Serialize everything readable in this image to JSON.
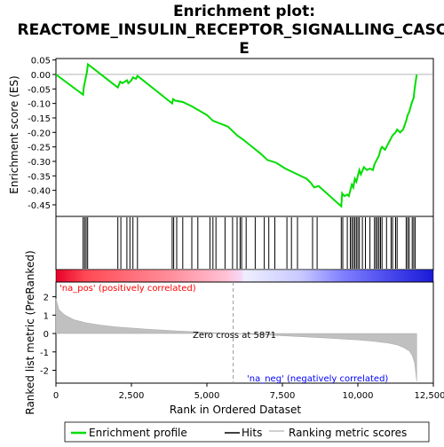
{
  "chart_data": {
    "type": "line",
    "title": "Enrichment plot:\nREACTOME_INSULIN_RECEPTOR_SIGNALLING_CASCAD\nE",
    "title_lines": [
      "Enrichment plot:",
      "REACTOME_INSULIN_RECEPTOR_SIGNALLING_CASCAD",
      "E"
    ],
    "top_panel": {
      "ylabel": "Enrichment score (ES)",
      "ylim": [
        -0.49,
        0.055
      ],
      "yticks": [
        0.05,
        0.0,
        -0.05,
        -0.1,
        -0.15,
        -0.2,
        -0.25,
        -0.3,
        -0.35,
        -0.4,
        -0.45
      ],
      "ytick_labels": [
        "0.05",
        "0.00",
        "-0.05",
        "-0.10",
        "-0.15",
        "-0.20",
        "-0.25",
        "-0.30",
        "-0.35",
        "-0.40",
        "-0.45"
      ],
      "series": [
        {
          "name": "Enrichment profile",
          "color": "#00dd00",
          "x": [
            0,
            900,
            920,
            980,
            1000,
            1030,
            1060,
            2050,
            2130,
            2200,
            2350,
            2400,
            2500,
            2550,
            2650,
            2700,
            3850,
            3880,
            3950,
            4200,
            4500,
            5000,
            5200,
            5700,
            6000,
            6200,
            6500,
            6800,
            7000,
            7300,
            7600,
            8000,
            8300,
            8450,
            8550,
            8700,
            9450,
            9480,
            9550,
            9650,
            9700,
            9750,
            9800,
            9850,
            9900,
            9950,
            10000,
            10050,
            10100,
            10200,
            10300,
            10400,
            10500,
            10550,
            10600,
            10650,
            10700,
            10750,
            10800,
            10900,
            11000,
            11100,
            11150,
            11250,
            11300,
            11400,
            11500,
            11600,
            11650,
            11700,
            11780,
            11850,
            11880,
            11920,
            11950
          ],
          "y": [
            0.0,
            -0.07,
            -0.045,
            -0.015,
            -0.005,
            0.01,
            0.035,
            -0.045,
            -0.025,
            -0.03,
            -0.02,
            -0.03,
            -0.02,
            -0.01,
            -0.015,
            -0.005,
            -0.1,
            -0.085,
            -0.09,
            -0.095,
            -0.11,
            -0.14,
            -0.16,
            -0.18,
            -0.21,
            -0.225,
            -0.25,
            -0.275,
            -0.295,
            -0.305,
            -0.325,
            -0.345,
            -0.36,
            -0.375,
            -0.39,
            -0.385,
            -0.455,
            -0.41,
            -0.42,
            -0.415,
            -0.42,
            -0.4,
            -0.38,
            -0.39,
            -0.36,
            -0.37,
            -0.35,
            -0.33,
            -0.345,
            -0.32,
            -0.33,
            -0.325,
            -0.33,
            -0.31,
            -0.3,
            -0.29,
            -0.28,
            -0.26,
            -0.25,
            -0.26,
            -0.24,
            -0.22,
            -0.21,
            -0.2,
            -0.19,
            -0.2,
            -0.19,
            -0.16,
            -0.14,
            -0.13,
            -0.1,
            -0.08,
            -0.05,
            -0.02,
            0.0
          ]
        }
      ]
    },
    "hits": [
      900,
      950,
      1000,
      1050,
      2050,
      2150,
      2350,
      2450,
      2550,
      2700,
      3850,
      3900,
      4000,
      4200,
      4500,
      4700,
      5100,
      5200,
      5300,
      5600,
      5850,
      6000,
      6100,
      6150,
      6300,
      6600,
      6900,
      7050,
      7250,
      7650,
      7800,
      8000,
      8500,
      8650,
      9450,
      9500,
      9650,
      9750,
      9800,
      9850,
      9900,
      9950,
      10000,
      10050,
      10150,
      10250,
      10400,
      10550,
      10600,
      10650,
      10700,
      10750,
      10800,
      10950,
      11100,
      11150,
      11250,
      11300,
      11600,
      11650,
      11700,
      11800,
      11850,
      11900
    ],
    "heatmap": {
      "pos_label": "'na_pos' (positively correlated)",
      "neg_label": "'na_neg' (negatively correlated)"
    },
    "bottom_panel": {
      "ylabel": "Ranked list metric (PreRanked)",
      "ylim": [
        -2.7,
        2.8
      ],
      "yticks": [
        2,
        1,
        0,
        -1,
        -2
      ],
      "ytick_labels": [
        "2",
        "1",
        "0",
        "-1",
        "-2"
      ],
      "zero_cross_label": "Zero cross at 5871",
      "zero_cross_x": 5871,
      "metric_x": [
        0,
        100,
        300,
        600,
        1000,
        1500,
        2000,
        3000,
        4000,
        5000,
        5871,
        7000,
        8000,
        9000,
        10000,
        10500,
        11000,
        11300,
        11500,
        11700,
        11800,
        11880,
        11950
      ],
      "metric_y": [
        1.9,
        1.3,
        1.0,
        0.75,
        0.58,
        0.45,
        0.36,
        0.24,
        0.14,
        0.06,
        0.0,
        -0.08,
        -0.16,
        -0.25,
        -0.35,
        -0.42,
        -0.52,
        -0.62,
        -0.75,
        -0.95,
        -1.2,
        -1.6,
        -2.6
      ]
    },
    "xlabel": "Rank in Ordered Dataset",
    "xlim": [
      0,
      12500
    ],
    "xticks": [
      0,
      2500,
      5000,
      7500,
      10000,
      12500
    ],
    "xtick_labels": [
      "0",
      "2,500",
      "5,000",
      "7,500",
      "10,000",
      "12,500"
    ],
    "legend": {
      "position": "bottom",
      "entries": [
        {
          "label": "Enrichment profile",
          "color": "#00dd00"
        },
        {
          "label": "Hits",
          "color": "#000000"
        },
        {
          "label": "Ranking metric scores",
          "color": "#c0c0c0"
        }
      ]
    },
    "colors": {
      "profile": "#00dd00",
      "metric_fill": "#c0c0c0",
      "pos_text": "#ff0000",
      "neg_text": "#0000ff"
    }
  }
}
